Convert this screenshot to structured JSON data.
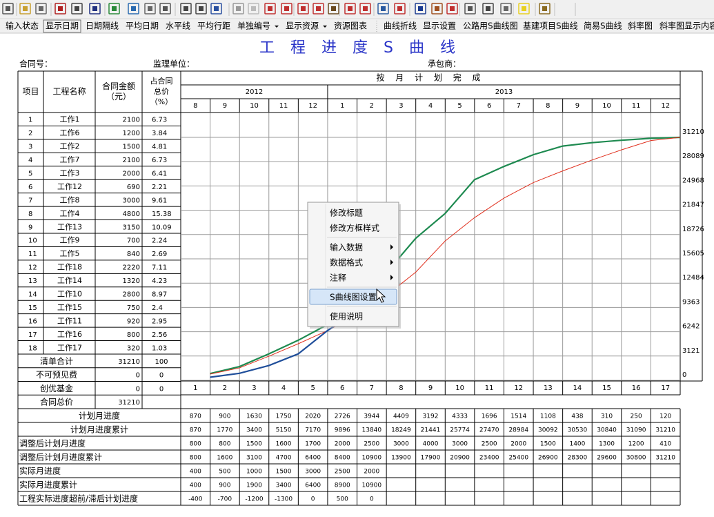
{
  "toolbar": {
    "buttons": [
      {
        "label": "输入状态",
        "disabled": true
      },
      {
        "label": "显示日期",
        "pressed": true
      },
      {
        "label": "日期隔线"
      },
      {
        "label": "平均日期"
      },
      {
        "label": "水平线"
      },
      {
        "label": "平均行距"
      },
      {
        "label": "单独编号",
        "dropdown": true
      },
      {
        "label": "显示资源",
        "dropdown": true
      },
      {
        "label": "资源图表"
      },
      {
        "label": "曲线折线"
      },
      {
        "label": "显示设置"
      },
      {
        "label": "公路用S曲线图"
      },
      {
        "label": "基建项目S曲线"
      },
      {
        "label": "简易S曲线"
      },
      {
        "label": "斜率图"
      },
      {
        "label": "斜率图显示内容",
        "disabled": true
      }
    ]
  },
  "title": "工 程 进 度 S 曲 线",
  "header": {
    "contract_no": "合同号：",
    "supervisor": "监理单位：",
    "contractor": "承包商："
  },
  "table": {
    "columns": [
      [
        "项目"
      ],
      [
        "工程名称"
      ],
      [
        "合同金额",
        "（元）"
      ],
      [
        "占合同",
        "总价",
        "（%）"
      ]
    ],
    "plan_header": "按 月 计 划 完 成",
    "years": [
      {
        "label": "2012",
        "months": [
          8,
          9,
          10,
          11,
          12
        ]
      },
      {
        "label": "2013",
        "months": [
          1,
          2,
          3,
          4,
          5,
          6,
          7,
          8,
          9,
          10,
          11,
          12
        ]
      }
    ],
    "rows": [
      [
        1,
        "工作1",
        2100,
        6.73
      ],
      [
        2,
        "工作6",
        1200,
        3.84
      ],
      [
        3,
        "工作2",
        1500,
        4.81
      ],
      [
        4,
        "工作7",
        2100,
        6.73
      ],
      [
        5,
        "工作3",
        2000,
        6.41
      ],
      [
        6,
        "工作12",
        690,
        2.21
      ],
      [
        7,
        "工作8",
        3000,
        9.61
      ],
      [
        8,
        "工作4",
        4800,
        15.38
      ],
      [
        9,
        "工作13",
        3150,
        10.09
      ],
      [
        10,
        "工作9",
        700,
        2.24
      ],
      [
        11,
        "工作5",
        840,
        2.69
      ],
      [
        12,
        "工作18",
        2220,
        7.11
      ],
      [
        13,
        "工作14",
        1320,
        4.23
      ],
      [
        14,
        "工作10",
        2800,
        8.97
      ],
      [
        15,
        "工作15",
        750,
        2.4
      ],
      [
        16,
        "工作11",
        920,
        2.95
      ],
      [
        17,
        "工作16",
        800,
        2.56
      ],
      [
        18,
        "工作17",
        320,
        1.03
      ]
    ],
    "summary": [
      [
        "清单合计",
        31210,
        100
      ],
      [
        "不可预见费",
        0,
        0
      ],
      [
        "创优基金",
        0,
        0
      ],
      [
        "合同总价",
        31210
      ]
    ],
    "periods": [
      1,
      2,
      3,
      4,
      5,
      6,
      7,
      8,
      9,
      10,
      11,
      12,
      13,
      14,
      15,
      16,
      17
    ]
  },
  "chart": {
    "ylim": [
      0,
      31210
    ],
    "yticks": [
      31210,
      28089,
      24968,
      21847,
      18726,
      15605,
      12484,
      9363,
      6242,
      3121,
      0
    ]
  },
  "progress": [
    {
      "name": "计划月进度",
      "values": [
        870,
        900,
        1630,
        1750,
        2020,
        2726,
        3944,
        4409,
        3192,
        4333,
        1696,
        1514,
        1108,
        438,
        310,
        250,
        120
      ]
    },
    {
      "name": "计划月进度累计",
      "color": "#1e8a50",
      "values": [
        870,
        1770,
        3400,
        5150,
        7170,
        9896,
        13840,
        18249,
        21441,
        25774,
        27470,
        28984,
        30092,
        30530,
        30840,
        31090,
        31210
      ]
    },
    {
      "name": "调整后计划月进度",
      "values": [
        800,
        800,
        1500,
        1600,
        1700,
        2000,
        2500,
        3000,
        4000,
        3000,
        2500,
        2000,
        1500,
        1400,
        1300,
        1200,
        410
      ]
    },
    {
      "name": "调整后计划月进度累计",
      "color": "#e0301e",
      "values": [
        800,
        1600,
        3100,
        4700,
        6400,
        8400,
        10900,
        13900,
        17900,
        20900,
        23400,
        25400,
        26900,
        28300,
        29600,
        30800,
        31210
      ]
    },
    {
      "name": "实际月进度",
      "values": [
        400,
        500,
        1000,
        1500,
        3000,
        2500,
        2000
      ]
    },
    {
      "name": "实际月进度累计",
      "color": "#1f4e9a",
      "values": [
        400,
        900,
        1900,
        3400,
        6400,
        8900,
        10900
      ]
    },
    {
      "name": "工程实际进度超前/滞后计划进度",
      "values": [
        -400,
        -700,
        -1200,
        -1300,
        0,
        500,
        0
      ]
    }
  ],
  "menu": {
    "selected": 5,
    "items": [
      {
        "label": "修改标题"
      },
      {
        "label": "修改方框样式",
        "separator_after": true
      },
      {
        "label": "输入数据",
        "submenu": true
      },
      {
        "label": "数据格式",
        "submenu": true
      },
      {
        "label": "注释",
        "submenu": true,
        "separator_after": true
      },
      {
        "label": "S曲线图设置",
        "separator_after": true
      },
      {
        "label": "使用说明"
      }
    ]
  }
}
